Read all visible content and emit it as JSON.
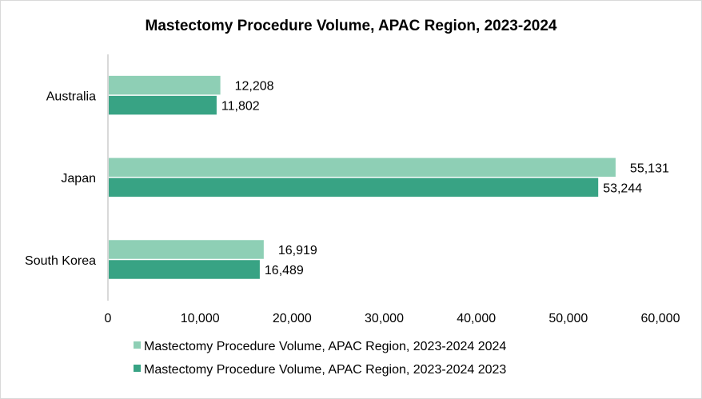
{
  "chart_data": {
    "type": "bar",
    "orientation": "horizontal",
    "title": "Mastectomy Procedure Volume, APAC Region, 2023-2024",
    "categories": [
      "Australia",
      "Japan",
      "South Korea"
    ],
    "series": [
      {
        "name": "Mastectomy Procedure Volume, APAC Region, 2023-2024 2024",
        "values": [
          12208,
          55131,
          16919
        ],
        "labels": [
          "12,208",
          "55,131",
          "16,919"
        ],
        "color": "#8ecfb5"
      },
      {
        "name": "Mastectomy Procedure Volume, APAC Region, 2023-2024 2023",
        "values": [
          11802,
          53244,
          16489
        ],
        "labels": [
          "11,802",
          "53,244",
          "16,489"
        ],
        "color": "#38a384"
      }
    ],
    "xlim": [
      0,
      60000
    ],
    "xticks": [
      "0",
      "10,000",
      "20,000",
      "30,000",
      "40,000",
      "50,000",
      "60,000"
    ],
    "grid": false,
    "legend": "bottom",
    "xlabel": "",
    "ylabel": ""
  }
}
